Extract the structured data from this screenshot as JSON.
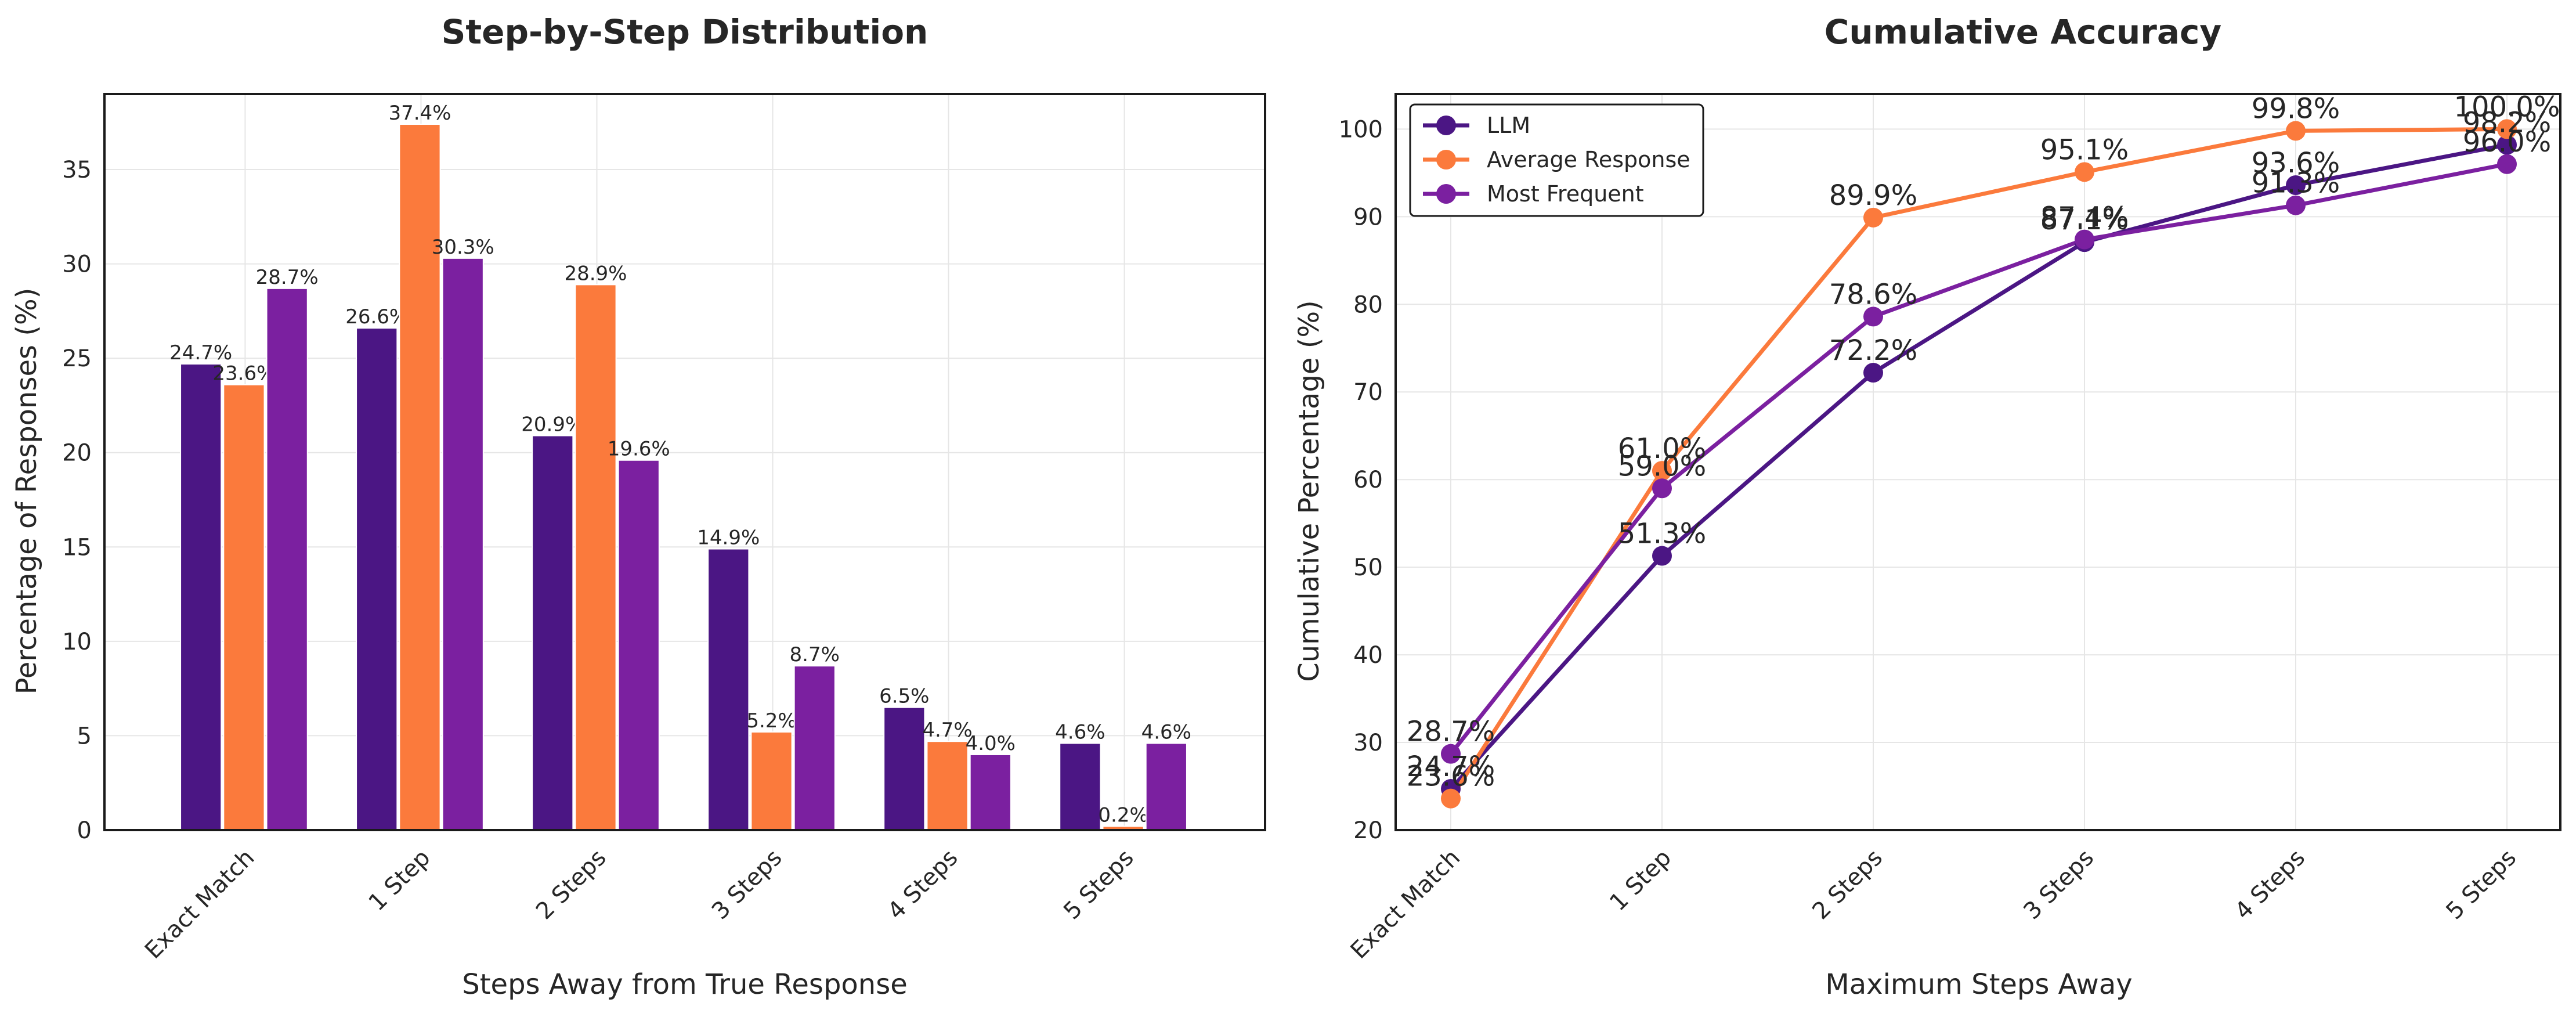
{
  "chart_data": [
    {
      "type": "bar",
      "title": "Step-by-Step Distribution",
      "xlabel": "Steps Away from True Response",
      "ylabel": "Percentage of Responses (%)",
      "categories": [
        "Exact Match",
        "1 Step",
        "2 Steps",
        "3 Steps",
        "4 Steps",
        "5 Steps"
      ],
      "ylim": [
        0,
        39
      ],
      "yticks": [
        0,
        5,
        10,
        15,
        20,
        25,
        30,
        35
      ],
      "grid": true,
      "series": [
        {
          "name": "LLM",
          "color": "#4b1684",
          "values": [
            24.7,
            26.6,
            20.9,
            14.9,
            6.5,
            4.6
          ],
          "labels": [
            "24.7%",
            "26.6%",
            "20.9%",
            "14.9%",
            "6.5%",
            "4.6%"
          ]
        },
        {
          "name": "Average Response",
          "color": "#fb7a3c",
          "values": [
            23.6,
            37.4,
            28.9,
            5.2,
            4.7,
            0.2
          ],
          "labels": [
            "23.6%",
            "37.4%",
            "28.9%",
            "5.2%",
            "4.7%",
            "0.2%"
          ]
        },
        {
          "name": "Most Frequent",
          "color": "#7b20a0",
          "values": [
            28.7,
            30.3,
            19.6,
            8.7,
            4.0,
            4.6
          ],
          "labels": [
            "28.7%",
            "30.3%",
            "19.6%",
            "8.7%",
            "4.0%",
            "4.6%"
          ]
        }
      ]
    },
    {
      "type": "line",
      "title": "Cumulative Accuracy",
      "xlabel": "Maximum Steps Away",
      "ylabel": "Cumulative Percentage (%)",
      "categories": [
        "Exact Match",
        "1 Step",
        "2 Steps",
        "3 Steps",
        "4 Steps",
        "5 Steps"
      ],
      "ylim": [
        20,
        104
      ],
      "yticks": [
        20,
        30,
        40,
        50,
        60,
        70,
        80,
        90,
        100
      ],
      "grid": true,
      "legend": "top-left",
      "series": [
        {
          "name": "LLM",
          "color": "#4b1684",
          "values": [
            24.7,
            51.3,
            72.2,
            87.1,
            93.6,
            98.2
          ],
          "labels": [
            "24.7%",
            "51.3%",
            "72.2%",
            "87.1%",
            "93.6%",
            "98.2%"
          ]
        },
        {
          "name": "Average Response",
          "color": "#fb7a3c",
          "values": [
            23.6,
            61.0,
            89.9,
            95.1,
            99.8,
            100.0
          ],
          "labels": [
            "23.6%",
            "61.0%",
            "89.9%",
            "95.1%",
            "99.8%",
            "100.0%"
          ]
        },
        {
          "name": "Most Frequent",
          "color": "#7b20a0",
          "values": [
            28.7,
            59.0,
            78.6,
            87.4,
            91.3,
            96.0
          ],
          "labels": [
            "28.7%",
            "59.0%",
            "78.6%",
            "87.4%",
            "91.3%",
            "96.0%"
          ]
        }
      ]
    }
  ]
}
